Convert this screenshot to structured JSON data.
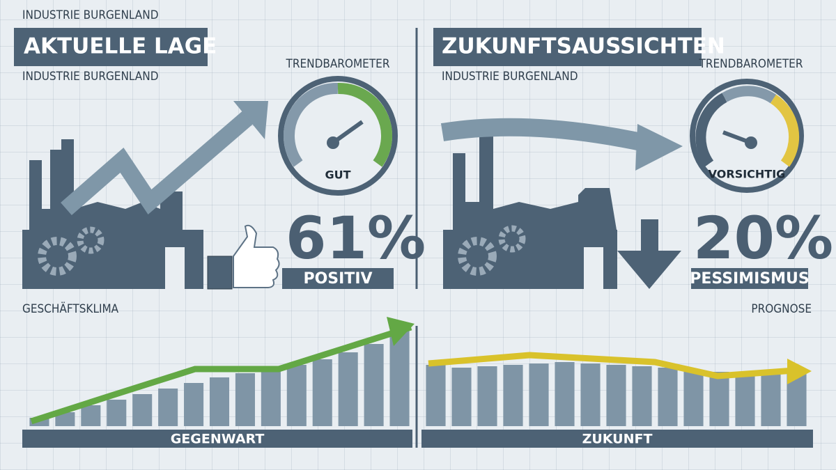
{
  "left": {
    "kicker": "INDUSTRIE BURGENLAND",
    "title": "AKTUELLE LAGE",
    "subtitle": "INDUSTRIE BURGENLAND",
    "gauge_label": "TRENDBAROMETER",
    "gauge_status": "GUT",
    "percent": "61%",
    "percent_label": "POSITIV"
  },
  "right": {
    "title": "ZUKUNFTSAUSSICHTEN",
    "subtitle": "INDUSTRIE BURGENLAND",
    "gauge_label": "TRENDBAROMETER",
    "gauge_status": "VORSICHTIG",
    "percent": "20%",
    "percent_label": "PESSIMISMUS"
  },
  "charts": [
    {
      "label": "GESCHÄFTSKLIMA",
      "axis_label": "GEGENWART",
      "values": [
        12,
        20,
        30,
        38,
        46,
        54,
        62,
        70,
        76,
        82,
        88,
        96,
        106,
        118,
        140
      ]
    },
    {
      "label": "PROGNOSE",
      "axis_label": "ZUKUNFT",
      "values": [
        88,
        84,
        86,
        88,
        90,
        92,
        90,
        88,
        86,
        84,
        80,
        78,
        76,
        74,
        76
      ]
    }
  ]
}
